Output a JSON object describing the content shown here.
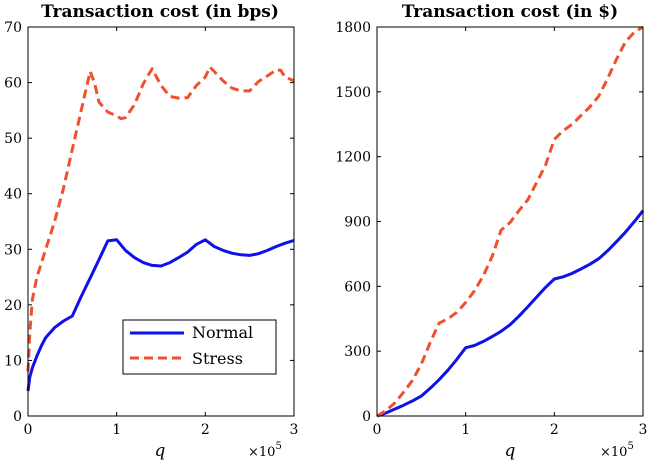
{
  "colors": {
    "normal": "#1010e8",
    "stress": "#f05030"
  },
  "chart_data": [
    {
      "type": "line",
      "title": "Transaction cost (in bps)",
      "xlabel": "q",
      "ylabel": "",
      "x_multiplier": "×10",
      "x_multiplier_exponent": "5",
      "xlim": [
        0,
        3
      ],
      "ylim": [
        0,
        70
      ],
      "xticks": [
        0,
        1,
        2,
        3
      ],
      "xtick_labels": [
        "0",
        "1",
        "2",
        "3"
      ],
      "yticks": [
        0,
        10,
        20,
        30,
        40,
        50,
        60,
        70
      ],
      "ytick_labels": [
        "0",
        "10",
        "20",
        "30",
        "40",
        "50",
        "60",
        "70"
      ],
      "legend": {
        "location": "center-right",
        "entries": [
          "Normal",
          "Stress"
        ]
      },
      "series": [
        {
          "name": "Normal",
          "style": "solid",
          "x": [
            0,
            0.02,
            0.05,
            0.1,
            0.15,
            0.2,
            0.3,
            0.4,
            0.5,
            0.6,
            0.7,
            0.8,
            0.9,
            1.0,
            1.1,
            1.2,
            1.3,
            1.4,
            1.5,
            1.6,
            1.7,
            1.8,
            1.9,
            2.0,
            2.1,
            2.2,
            2.3,
            2.4,
            2.5,
            2.6,
            2.7,
            2.8,
            2.9,
            3.0
          ],
          "y": [
            4.5,
            7,
            8.7,
            10.8,
            12.6,
            14.1,
            15.9,
            17.1,
            18,
            21.5,
            24.8,
            28.1,
            31.5,
            31.7,
            29.8,
            28.5,
            27.6,
            27.1,
            27.0,
            27.6,
            28.5,
            29.5,
            30.9,
            31.7,
            30.5,
            29.8,
            29.3,
            29.0,
            28.9,
            29.2,
            29.8,
            30.5,
            31.1,
            31.6
          ]
        },
        {
          "name": "Stress",
          "style": "dashed",
          "x": [
            0,
            0.02,
            0.05,
            0.1,
            0.15,
            0.2,
            0.3,
            0.4,
            0.5,
            0.6,
            0.7,
            0.75,
            0.8,
            0.9,
            1.0,
            1.05,
            1.1,
            1.2,
            1.3,
            1.4,
            1.5,
            1.6,
            1.7,
            1.8,
            1.9,
            2.0,
            2.05,
            2.1,
            2.2,
            2.3,
            2.4,
            2.5,
            2.6,
            2.7,
            2.8,
            2.85,
            2.9,
            3.0
          ],
          "y": [
            8,
            15,
            21,
            25,
            27.5,
            30,
            35,
            41,
            48,
            55,
            62,
            60,
            56.5,
            54.7,
            54,
            53.5,
            53.7,
            56,
            59.8,
            62.5,
            59.5,
            57.5,
            57.2,
            57.3,
            59.5,
            61,
            62.8,
            62,
            60.3,
            59,
            58.5,
            58.5,
            60.2,
            61.2,
            62.3,
            62.2,
            61,
            60.3
          ]
        }
      ]
    },
    {
      "type": "line",
      "title": "Transaction cost (in $)",
      "xlabel": "q",
      "ylabel": "",
      "x_multiplier": "×10",
      "x_multiplier_exponent": "5",
      "xlim": [
        0,
        3
      ],
      "ylim": [
        0,
        1800
      ],
      "xticks": [
        0,
        1,
        2,
        3
      ],
      "xtick_labels": [
        "0",
        "1",
        "2",
        "3"
      ],
      "yticks": [
        0,
        300,
        600,
        900,
        1200,
        1500,
        1800
      ],
      "ytick_labels": [
        "0",
        "300",
        "600",
        "900",
        "1200",
        "1500",
        "1800"
      ],
      "series": [
        {
          "name": "Normal",
          "style": "solid",
          "x": [
            0,
            0.1,
            0.2,
            0.3,
            0.4,
            0.5,
            0.6,
            0.7,
            0.8,
            0.9,
            1.0,
            1.1,
            1.2,
            1.3,
            1.4,
            1.5,
            1.6,
            1.7,
            1.8,
            1.9,
            2.0,
            2.1,
            2.2,
            2.3,
            2.4,
            2.5,
            2.6,
            2.7,
            2.8,
            2.9,
            3.0
          ],
          "y": [
            0,
            14,
            32,
            50,
            70,
            92,
            128,
            168,
            212,
            262,
            316,
            326,
            345,
            368,
            392,
            422,
            462,
            505,
            550,
            595,
            634,
            644,
            660,
            680,
            702,
            728,
            764,
            806,
            850,
            898,
            950
          ]
        },
        {
          "name": "Stress",
          "style": "dashed",
          "x": [
            0,
            0.1,
            0.2,
            0.3,
            0.4,
            0.5,
            0.6,
            0.7,
            0.8,
            0.9,
            1.0,
            1.1,
            1.2,
            1.3,
            1.4,
            1.5,
            1.6,
            1.7,
            1.8,
            1.9,
            2.0,
            2.1,
            2.2,
            2.3,
            2.4,
            2.5,
            2.6,
            2.7,
            2.8,
            2.9,
            3.0
          ],
          "y": [
            0,
            25,
            60,
            110,
            165,
            240,
            340,
            430,
            450,
            480,
            525,
            580,
            650,
            740,
            860,
            895,
            950,
            1000,
            1080,
            1160,
            1280,
            1320,
            1350,
            1390,
            1430,
            1480,
            1560,
            1650,
            1730,
            1775,
            1800
          ]
        }
      ]
    }
  ]
}
